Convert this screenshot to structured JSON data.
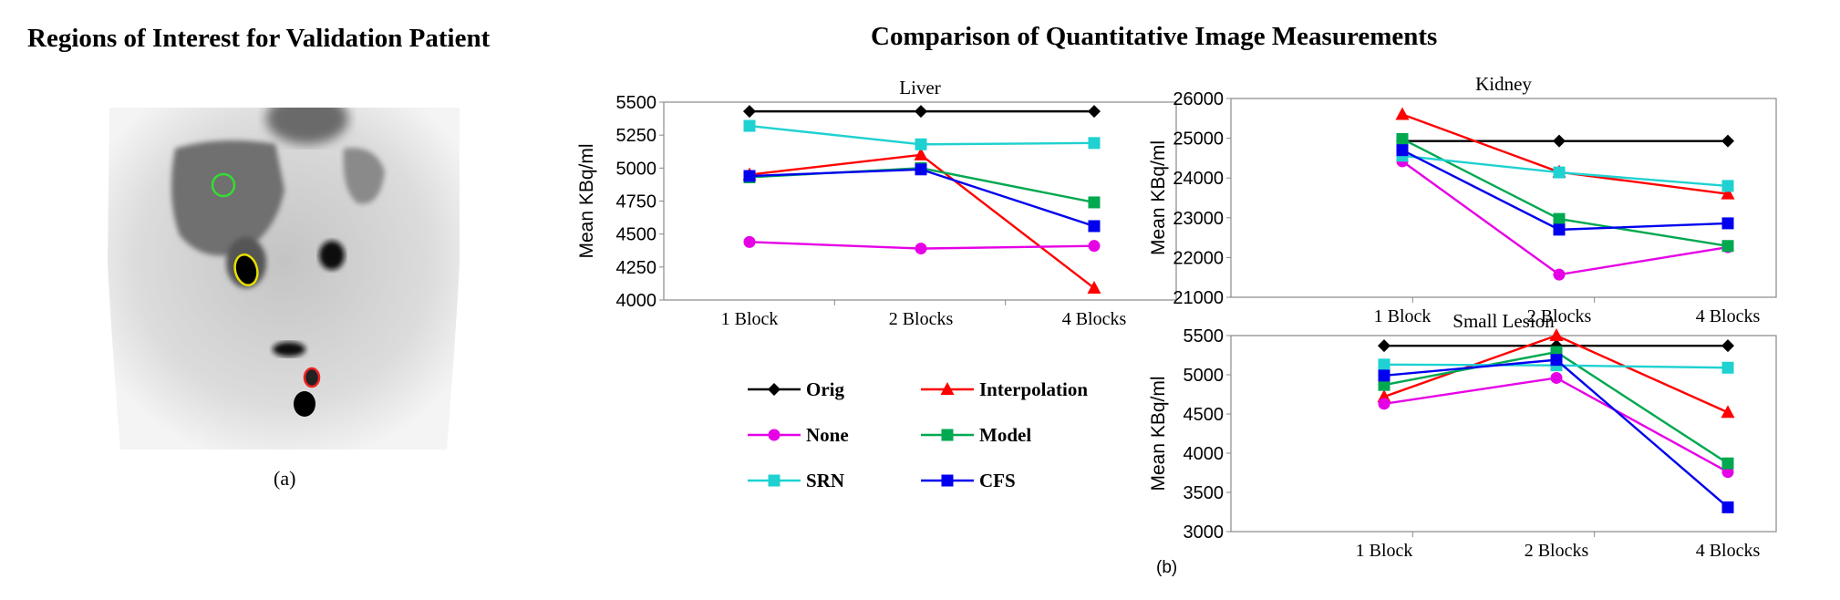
{
  "figure": {
    "left_title": "Regions of Interest for Validation Patient",
    "right_title": "Comparison of Quantitative Image Measurements",
    "caption_a": "(a)",
    "caption_b": "(b)"
  },
  "image": {
    "type": "coronal PET slice",
    "roi_colors": {
      "liver": "#33dd33",
      "kidney": "#e8e000",
      "lesion": "#ee2222"
    }
  },
  "series_styles": [
    {
      "name": "Orig",
      "color": "#000000",
      "marker": "diamond"
    },
    {
      "name": "Interpolation",
      "color": "#ff0000",
      "marker": "triangle"
    },
    {
      "name": "None",
      "color": "#e600e6",
      "marker": "circle"
    },
    {
      "name": "Model",
      "color": "#00a850",
      "marker": "square"
    },
    {
      "name": "SRN",
      "color": "#1fd1d1",
      "marker": "square"
    },
    {
      "name": "CFS",
      "color": "#0000ee",
      "marker": "square"
    }
  ],
  "chart_data": [
    {
      "type": "line",
      "title": "Liver",
      "ylabel": "Mean KBq/ml",
      "categories": [
        "1 Block",
        "2 Blocks",
        "4 Blocks"
      ],
      "ylim": [
        4000,
        5500
      ],
      "yticks": [
        "4000",
        "4250",
        "4500",
        "4750",
        "5000",
        "5250",
        "5500"
      ],
      "series": [
        {
          "name": "Orig",
          "values": [
            5430,
            5430,
            5430
          ]
        },
        {
          "name": "Interpolation",
          "values": [
            4950,
            5100,
            4090
          ]
        },
        {
          "name": "None",
          "values": [
            4440,
            4390,
            4410
          ]
        },
        {
          "name": "Model",
          "values": [
            4930,
            5000,
            4740
          ]
        },
        {
          "name": "SRN",
          "values": [
            5320,
            5180,
            5190
          ]
        },
        {
          "name": "CFS",
          "values": [
            4940,
            4990,
            4560
          ]
        }
      ]
    },
    {
      "type": "line",
      "title": "Kidney",
      "ylabel": "Mean KBq/ml",
      "categories": [
        "1 Block",
        "2 Blocks",
        "4 Blocks"
      ],
      "ylim": [
        21000,
        26000
      ],
      "yticks": [
        "21000",
        "22000",
        "23000",
        "24000",
        "25000",
        "26000"
      ],
      "series": [
        {
          "name": "Orig",
          "values": [
            24930,
            24930,
            24930
          ]
        },
        {
          "name": "Interpolation",
          "values": [
            25600,
            24150,
            23600
          ]
        },
        {
          "name": "None",
          "values": [
            24420,
            21570,
            22260
          ]
        },
        {
          "name": "Model",
          "values": [
            24980,
            22970,
            22290
          ]
        },
        {
          "name": "SRN",
          "values": [
            24560,
            24140,
            23800
          ]
        },
        {
          "name": "CFS",
          "values": [
            24700,
            22700,
            22860
          ]
        }
      ]
    },
    {
      "type": "line",
      "title": "Small Lesion",
      "ylabel": "Mean KBq/ml",
      "categories": [
        "1 Block",
        "2 Blocks",
        "4 Blocks"
      ],
      "ylim": [
        3000,
        5500
      ],
      "yticks": [
        "3000",
        "3500",
        "4000",
        "4500",
        "5000",
        "5500"
      ],
      "series": [
        {
          "name": "Orig",
          "values": [
            5370,
            5370,
            5370
          ]
        },
        {
          "name": "Interpolation",
          "values": [
            4720,
            5500,
            4520
          ]
        },
        {
          "name": "None",
          "values": [
            4630,
            4960,
            3760
          ]
        },
        {
          "name": "Model",
          "values": [
            4870,
            5290,
            3870
          ]
        },
        {
          "name": "SRN",
          "values": [
            5130,
            5120,
            5090
          ]
        },
        {
          "name": "CFS",
          "values": [
            4990,
            5190,
            3310
          ]
        }
      ]
    }
  ]
}
